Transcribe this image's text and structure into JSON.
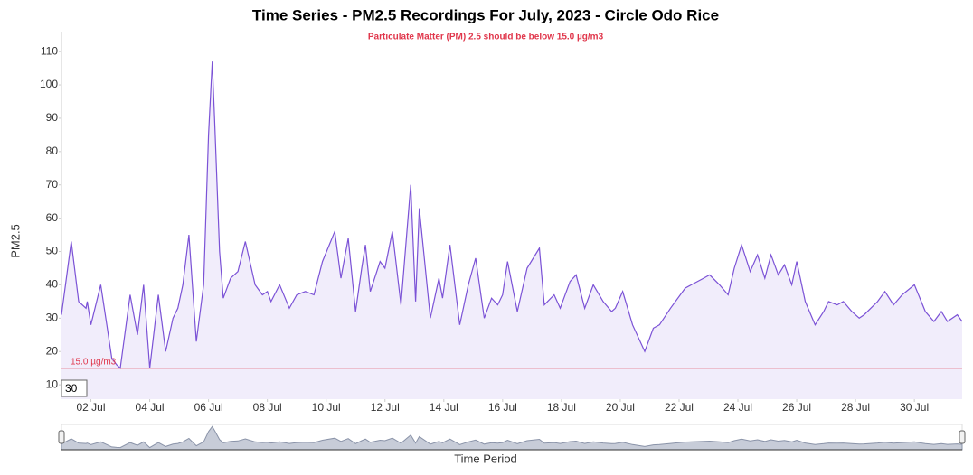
{
  "chart_data": {
    "type": "area",
    "title": "Time Series - PM2.5 Recordings For July, 2023 - Circle Odo Rice",
    "subtitle": "Particulate Matter (PM) 2.5 should be below 15.0 µg/m3",
    "y_label": "PM2.5",
    "x_label": "Time Period",
    "zoom_input": "30",
    "threshold": {
      "value": 15,
      "label": "15.0 µg/m3",
      "color": "#e0364b"
    },
    "xlim": [
      "2023-07-01T00:00",
      "2023-07-31T15:00"
    ],
    "ylim": [
      5.7,
      116
    ],
    "yticks": [
      10,
      20,
      30,
      40,
      50,
      60,
      70,
      80,
      90,
      100,
      110
    ],
    "xticks": [
      {
        "value": "2023-07-02T00:00",
        "label": "02 Jul"
      },
      {
        "value": "2023-07-04T00:00",
        "label": "04 Jul"
      },
      {
        "value": "2023-07-06T00:00",
        "label": "06 Jul"
      },
      {
        "value": "2023-07-08T00:00",
        "label": "08 Jul"
      },
      {
        "value": "2023-07-10T00:00",
        "label": "10 Jul"
      },
      {
        "value": "2023-07-12T00:00",
        "label": "12 Jul"
      },
      {
        "value": "2023-07-14T00:00",
        "label": "14 Jul"
      },
      {
        "value": "2023-07-16T00:00",
        "label": "16 Jul"
      },
      {
        "value": "2023-07-18T00:00",
        "label": "18 Jul"
      },
      {
        "value": "2023-07-20T00:00",
        "label": "20 Jul"
      },
      {
        "value": "2023-07-22T00:00",
        "label": "22 Jul"
      },
      {
        "value": "2023-07-24T00:00",
        "label": "24 Jul"
      },
      {
        "value": "2023-07-26T00:00",
        "label": "26 Jul"
      },
      {
        "value": "2023-07-28T00:00",
        "label": "28 Jul"
      },
      {
        "value": "2023-07-30T00:00",
        "label": "30 Jul"
      }
    ],
    "x": [
      "2023-07-01T00:00",
      "2023-07-01T08:00",
      "2023-07-01T14:00",
      "2023-07-01T20:00",
      "2023-07-01T21:00",
      "2023-07-02T00:00",
      "2023-07-02T08:00",
      "2023-07-02T13:00",
      "2023-07-02T17:00",
      "2023-07-02T21:00",
      "2023-07-03T00:00",
      "2023-07-03T08:00",
      "2023-07-03T14:00",
      "2023-07-03T19:00",
      "2023-07-04T00:00",
      "2023-07-04T07:00",
      "2023-07-04T13:00",
      "2023-07-04T19:00",
      "2023-07-04T23:00",
      "2023-07-05T03:00",
      "2023-07-05T08:00",
      "2023-07-05T14:00",
      "2023-07-05T20:00",
      "2023-07-06T00:00",
      "2023-07-06T03:00",
      "2023-07-06T05:00",
      "2023-07-06T09:00",
      "2023-07-06T12:00",
      "2023-07-06T18:00",
      "2023-07-07T00:00",
      "2023-07-07T06:00",
      "2023-07-07T14:00",
      "2023-07-07T20:00",
      "2023-07-08T00:00",
      "2023-07-08T03:00",
      "2023-07-08T10:00",
      "2023-07-08T18:00",
      "2023-07-09T00:00",
      "2023-07-09T07:00",
      "2023-07-09T14:00",
      "2023-07-09T21:00",
      "2023-07-10T07:00",
      "2023-07-10T12:00",
      "2023-07-10T18:00",
      "2023-07-11T00:00",
      "2023-07-11T05:00",
      "2023-07-11T08:00",
      "2023-07-11T12:00",
      "2023-07-11T20:00",
      "2023-07-12T00:00",
      "2023-07-12T06:00",
      "2023-07-12T13:00",
      "2023-07-12T21:00",
      "2023-07-13T01:00",
      "2023-07-13T04:00",
      "2023-07-13T13:00",
      "2023-07-13T20:00",
      "2023-07-13T23:00",
      "2023-07-14T05:00",
      "2023-07-14T13:00",
      "2023-07-14T20:00",
      "2023-07-15T02:00",
      "2023-07-15T09:00",
      "2023-07-15T15:00",
      "2023-07-15T20:00",
      "2023-07-16T00:00",
      "2023-07-16T04:00",
      "2023-07-16T12:00",
      "2023-07-16T20:00",
      "2023-07-17T06:00",
      "2023-07-17T10:00",
      "2023-07-17T18:00",
      "2023-07-17T23:00",
      "2023-07-18T07:00",
      "2023-07-18T12:00",
      "2023-07-18T19:00",
      "2023-07-19T02:00",
      "2023-07-19T10:00",
      "2023-07-19T17:00",
      "2023-07-19T20:00",
      "2023-07-20T02:00",
      "2023-07-20T10:00",
      "2023-07-20T20:00",
      "2023-07-21T03:00",
      "2023-07-21T08:00",
      "2023-07-21T17:00",
      "2023-07-22T05:00",
      "2023-07-22T10:00",
      "2023-07-22T20:00",
      "2023-07-23T01:00",
      "2023-07-23T09:00",
      "2023-07-23T16:00",
      "2023-07-23T21:00",
      "2023-07-24T03:00",
      "2023-07-24T10:00",
      "2023-07-24T16:00",
      "2023-07-24T22:00",
      "2023-07-25T03:00",
      "2023-07-25T09:00",
      "2023-07-25T14:00",
      "2023-07-25T20:00",
      "2023-07-26T00:00",
      "2023-07-26T07:00",
      "2023-07-26T15:00",
      "2023-07-26T22:00",
      "2023-07-27T02:00",
      "2023-07-27T09:00",
      "2023-07-27T14:00",
      "2023-07-27T21:00",
      "2023-07-28T03:00",
      "2023-07-28T07:00",
      "2023-07-28T18:00",
      "2023-07-29T00:00",
      "2023-07-29T07:00",
      "2023-07-29T14:00",
      "2023-07-30T00:00",
      "2023-07-30T09:00",
      "2023-07-30T16:00",
      "2023-07-30T22:00",
      "2023-07-31T03:00",
      "2023-07-31T11:00",
      "2023-07-31T15:00"
    ],
    "series": [
      {
        "name": "PM2.5",
        "color": "#7b52d6",
        "fill": "#f1edfb",
        "values": [
          31,
          53,
          35,
          33,
          35,
          28,
          40,
          28,
          18,
          16,
          15,
          37,
          25,
          40,
          15,
          37,
          20,
          30,
          33,
          40,
          55,
          23,
          40,
          85,
          107,
          89,
          50,
          36,
          42,
          44,
          53,
          40,
          37,
          38,
          35,
          40,
          33,
          37,
          38,
          37,
          47,
          56,
          42,
          54,
          32,
          45,
          52,
          38,
          47,
          45,
          56,
          34,
          70,
          35,
          63,
          30,
          42,
          36,
          52,
          28,
          40,
          48,
          30,
          36,
          34,
          37,
          47,
          32,
          45,
          51,
          34,
          37,
          33,
          41,
          43,
          33,
          40,
          35,
          32,
          33,
          38,
          28,
          20,
          27,
          28,
          33,
          39,
          40,
          42,
          43,
          40,
          37,
          45,
          52,
          44,
          49,
          42,
          49,
          43,
          46,
          40,
          47,
          35,
          28,
          32,
          35,
          34,
          35,
          32,
          30,
          31,
          35,
          38,
          34,
          37,
          40,
          32,
          29,
          32,
          29,
          31,
          29
        ]
      }
    ]
  }
}
